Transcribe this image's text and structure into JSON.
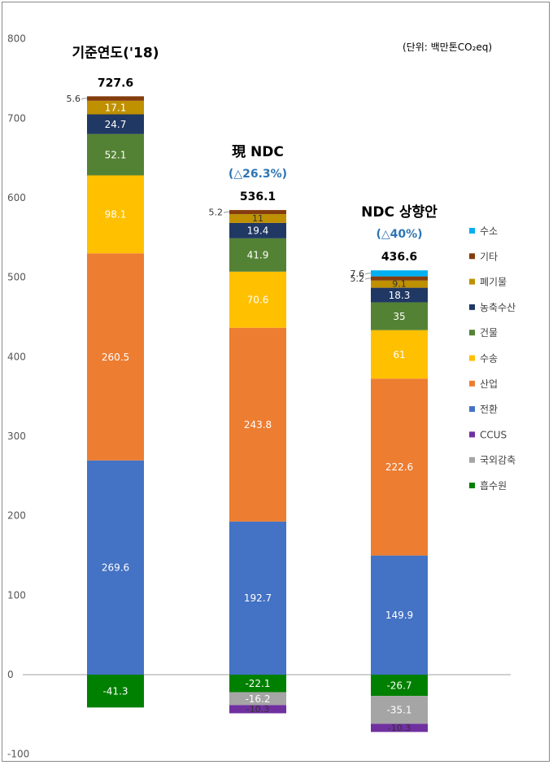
{
  "chart_data": {
    "type": "bar",
    "stacked": true,
    "unit": "(단위: 백만톤CO₂eq)",
    "ylim": [
      -100,
      800
    ],
    "yticks": [
      -100,
      0,
      100,
      200,
      300,
      400,
      500,
      600,
      700,
      800
    ],
    "grid": false,
    "legend_position": "right",
    "categories": [
      {
        "title": "기준연도('18)",
        "subtitle": "",
        "total": "727.6"
      },
      {
        "title": "現 NDC",
        "subtitle": "(△26.3%)",
        "total": "536.1"
      },
      {
        "title": "NDC 상향안",
        "subtitle": "(△40%)",
        "total": "436.6"
      }
    ],
    "series": [
      {
        "name": "전환",
        "color": "#4472c4",
        "values": [
          269.6,
          192.7,
          149.9
        ]
      },
      {
        "name": "산업",
        "color": "#ed7d31",
        "values": [
          260.5,
          243.8,
          222.6
        ]
      },
      {
        "name": "수송",
        "color": "#ffc000",
        "values": [
          98.1,
          70.6,
          61
        ]
      },
      {
        "name": "건물",
        "color": "#548235",
        "values": [
          52.1,
          41.9,
          35
        ]
      },
      {
        "name": "농축수산",
        "color": "#203864",
        "values": [
          24.7,
          19.4,
          18.3
        ]
      },
      {
        "name": "폐기물",
        "color": "#bf9000",
        "values": [
          17.1,
          11,
          9.1
        ]
      },
      {
        "name": "기타",
        "color": "#843c0c",
        "values": [
          5.6,
          5.2,
          5.2
        ]
      },
      {
        "name": "수소",
        "color": "#00b0f0",
        "values": [
          0,
          0,
          7.6
        ]
      },
      {
        "name": "흡수원",
        "color": "#008000",
        "values": [
          -41.3,
          -22.1,
          -26.7
        ]
      },
      {
        "name": "국외감축",
        "color": "#a5a5a5",
        "values": [
          0,
          -16.2,
          -35.1
        ]
      },
      {
        "name": "CCUS",
        "color": "#7030a0",
        "values": [
          0,
          -10.3,
          -10.3
        ]
      }
    ],
    "legend_order": [
      "수소",
      "기타",
      "폐기물",
      "농축수산",
      "건물",
      "수송",
      "산업",
      "전환",
      "CCUS",
      "국외감축",
      "흡수원"
    ],
    "outside_labels": [
      "기타",
      "수소"
    ]
  }
}
